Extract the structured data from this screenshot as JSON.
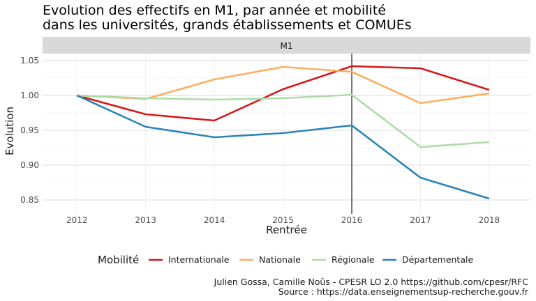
{
  "chart_data": {
    "type": "line",
    "title_lines": [
      "Evolution des effectifs en M1, par année et mobilité",
      "dans les universités, grands établissements et COMUEs"
    ],
    "facet_label": "M1",
    "xlabel": "Rentrée",
    "ylabel": "Evolution",
    "x": [
      2012,
      2013,
      2014,
      2015,
      2016,
      2017,
      2018
    ],
    "xlim": [
      2011.5,
      2018.6
    ],
    "ylim": [
      0.83,
      1.06
    ],
    "yticks": [
      0.85,
      0.9,
      0.95,
      1.0,
      1.05
    ],
    "ytick_labels": [
      "0.85",
      "0.90",
      "0.95",
      "1.00",
      "1.05"
    ],
    "vline_x": 2016,
    "grid": true,
    "legend_title": "Mobilité",
    "legend_position": "bottom",
    "series": [
      {
        "name": "Internationale",
        "color": "#d7191c",
        "values": [
          1.0,
          0.973,
          0.964,
          1.009,
          1.042,
          1.039,
          1.008
        ]
      },
      {
        "name": "Nationale",
        "color": "#fdae61",
        "values": [
          1.0,
          0.995,
          1.023,
          1.041,
          1.034,
          0.989,
          1.003
        ]
      },
      {
        "name": "Régionale",
        "color": "#abdda4",
        "values": [
          1.0,
          0.996,
          0.994,
          0.996,
          1.001,
          0.926,
          0.933
        ]
      },
      {
        "name": "Départementale",
        "color": "#2b83ba",
        "values": [
          1.0,
          0.955,
          0.94,
          0.946,
          0.957,
          0.882,
          0.852
        ]
      }
    ],
    "caption_lines": [
      "Julien Gossa, Camille Noûs - CPESR LO 2.0 https://github.com/cpesr/RFC",
      "Source : https://data.enseignementsup-recherche.gouv.fr"
    ]
  }
}
